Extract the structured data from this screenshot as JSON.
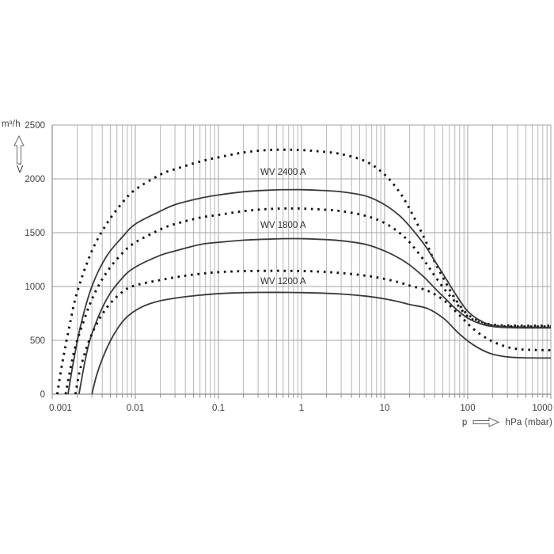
{
  "figure": {
    "y_axis": {
      "unit": "m³/h",
      "quantity": "V̇"
    },
    "x_axis": {
      "quantity": "p",
      "unit": "hPa (mbar)"
    }
  },
  "chart_data": {
    "type": "line",
    "title": "",
    "xlabel": "p (hPa (mbar))",
    "ylabel": "V̇ (m³/h)",
    "x_scale": "log",
    "x_range": [
      0.001,
      1000
    ],
    "y_range": [
      0,
      2500
    ],
    "x_ticks": [
      0.001,
      0.01,
      0.1,
      1,
      10,
      100,
      1000
    ],
    "y_ticks": [
      0,
      500,
      1000,
      1500,
      2000,
      2500
    ],
    "grid": "vertical log minor gridlines every decade (2-9), horizontal gridlines every 500",
    "legend_position": "none (labels inside plot)",
    "line_color": "#3a3a3a",
    "dot_color": "#141414",
    "grid_color": "#b3b3b3",
    "annotations": [
      {
        "text": "WV 2400 A",
        "x": 0.33,
        "y": 2030
      },
      {
        "text": "WV 1800 A",
        "x": 0.33,
        "y": 1520
      },
      {
        "text": "WV 1200 A",
        "x": 0.33,
        "y": 1010
      }
    ],
    "series": [
      {
        "name": "WV 2400 A",
        "style": "dotted",
        "points": [
          [
            0.00115,
            0
          ],
          [
            0.0013,
            260
          ],
          [
            0.0016,
            620
          ],
          [
            0.002,
            950
          ],
          [
            0.003,
            1330
          ],
          [
            0.0045,
            1580
          ],
          [
            0.007,
            1780
          ],
          [
            0.01,
            1900
          ],
          [
            0.02,
            2040
          ],
          [
            0.03,
            2090
          ],
          [
            0.06,
            2160
          ],
          [
            0.1,
            2200
          ],
          [
            0.2,
            2245
          ],
          [
            0.4,
            2268
          ],
          [
            0.8,
            2270
          ],
          [
            1.5,
            2258
          ],
          [
            3,
            2230
          ],
          [
            6,
            2160
          ],
          [
            10,
            2040
          ],
          [
            15,
            1880
          ],
          [
            20,
            1720
          ],
          [
            30,
            1450
          ],
          [
            40,
            1230
          ],
          [
            55,
            1030
          ],
          [
            70,
            890
          ],
          [
            100,
            740
          ],
          [
            150,
            668
          ],
          [
            220,
            642
          ],
          [
            400,
            636
          ],
          [
            1000,
            635
          ]
        ]
      },
      {
        "name": "WV 2400 A",
        "style": "solid",
        "points": [
          [
            0.00155,
            0
          ],
          [
            0.0018,
            300
          ],
          [
            0.0022,
            640
          ],
          [
            0.003,
            1000
          ],
          [
            0.0045,
            1280
          ],
          [
            0.007,
            1460
          ],
          [
            0.01,
            1580
          ],
          [
            0.02,
            1700
          ],
          [
            0.03,
            1760
          ],
          [
            0.06,
            1820
          ],
          [
            0.1,
            1850
          ],
          [
            0.2,
            1880
          ],
          [
            0.4,
            1895
          ],
          [
            0.8,
            1900
          ],
          [
            1.5,
            1895
          ],
          [
            3,
            1880
          ],
          [
            6,
            1840
          ],
          [
            10,
            1760
          ],
          [
            15,
            1660
          ],
          [
            20,
            1560
          ],
          [
            30,
            1390
          ],
          [
            40,
            1240
          ],
          [
            55,
            1070
          ],
          [
            70,
            940
          ],
          [
            100,
            770
          ],
          [
            150,
            672
          ],
          [
            220,
            634
          ],
          [
            400,
            623
          ],
          [
            1000,
            620
          ]
        ]
      },
      {
        "name": "WV 1800 A",
        "style": "dotted",
        "points": [
          [
            0.00145,
            0
          ],
          [
            0.0017,
            280
          ],
          [
            0.002,
            500
          ],
          [
            0.003,
            880
          ],
          [
            0.0045,
            1130
          ],
          [
            0.007,
            1310
          ],
          [
            0.01,
            1410
          ],
          [
            0.02,
            1530
          ],
          [
            0.03,
            1580
          ],
          [
            0.06,
            1640
          ],
          [
            0.1,
            1665
          ],
          [
            0.2,
            1700
          ],
          [
            0.4,
            1720
          ],
          [
            0.8,
            1725
          ],
          [
            1.5,
            1718
          ],
          [
            3,
            1700
          ],
          [
            6,
            1655
          ],
          [
            10,
            1590
          ],
          [
            15,
            1500
          ],
          [
            20,
            1410
          ],
          [
            30,
            1240
          ],
          [
            40,
            1100
          ],
          [
            55,
            955
          ],
          [
            70,
            860
          ],
          [
            100,
            722
          ],
          [
            150,
            658
          ],
          [
            220,
            634
          ],
          [
            400,
            629
          ],
          [
            1000,
            628
          ]
        ]
      },
      {
        "name": "WV 1800 A",
        "style": "solid",
        "points": [
          [
            0.0021,
            0
          ],
          [
            0.0025,
            320
          ],
          [
            0.003,
            560
          ],
          [
            0.0045,
            880
          ],
          [
            0.007,
            1080
          ],
          [
            0.01,
            1180
          ],
          [
            0.02,
            1290
          ],
          [
            0.03,
            1330
          ],
          [
            0.06,
            1390
          ],
          [
            0.1,
            1410
          ],
          [
            0.2,
            1430
          ],
          [
            0.4,
            1440
          ],
          [
            0.8,
            1445
          ],
          [
            1.5,
            1440
          ],
          [
            3,
            1425
          ],
          [
            6,
            1390
          ],
          [
            10,
            1330
          ],
          [
            15,
            1262
          ],
          [
            20,
            1200
          ],
          [
            30,
            1085
          ],
          [
            40,
            985
          ],
          [
            55,
            880
          ],
          [
            70,
            800
          ],
          [
            100,
            706
          ],
          [
            150,
            648
          ],
          [
            220,
            624
          ],
          [
            400,
            616
          ],
          [
            1000,
            615
          ]
        ]
      },
      {
        "name": "WV 1200 A",
        "style": "dotted",
        "points": [
          [
            0.0019,
            0
          ],
          [
            0.0022,
            250
          ],
          [
            0.003,
            560
          ],
          [
            0.0045,
            800
          ],
          [
            0.007,
            950
          ],
          [
            0.01,
            1010
          ],
          [
            0.02,
            1060
          ],
          [
            0.04,
            1100
          ],
          [
            0.08,
            1128
          ],
          [
            0.15,
            1140
          ],
          [
            0.3,
            1145
          ],
          [
            0.7,
            1145
          ],
          [
            1.5,
            1140
          ],
          [
            3,
            1125
          ],
          [
            6,
            1100
          ],
          [
            10,
            1070
          ],
          [
            15,
            1038
          ],
          [
            20,
            1008
          ],
          [
            33,
            960
          ],
          [
            52,
            870
          ],
          [
            79,
            735
          ],
          [
            121,
            596
          ],
          [
            187,
            500
          ],
          [
            290,
            441
          ],
          [
            450,
            415
          ],
          [
            1000,
            408
          ]
        ]
      },
      {
        "name": "WV 1200 A",
        "style": "solid",
        "points": [
          [
            0.003,
            0
          ],
          [
            0.0035,
            200
          ],
          [
            0.0045,
            420
          ],
          [
            0.006,
            600
          ],
          [
            0.008,
            720
          ],
          [
            0.012,
            810
          ],
          [
            0.02,
            868
          ],
          [
            0.04,
            905
          ],
          [
            0.08,
            928
          ],
          [
            0.15,
            940
          ],
          [
            0.3,
            945
          ],
          [
            0.7,
            945
          ],
          [
            1.5,
            940
          ],
          [
            3,
            930
          ],
          [
            6,
            910
          ],
          [
            10,
            885
          ],
          [
            15,
            857
          ],
          [
            20,
            832
          ],
          [
            33,
            795
          ],
          [
            52,
            700
          ],
          [
            79,
            560
          ],
          [
            121,
            450
          ],
          [
            187,
            378
          ],
          [
            290,
            347
          ],
          [
            450,
            338
          ],
          [
            1000,
            335
          ]
        ]
      }
    ]
  }
}
